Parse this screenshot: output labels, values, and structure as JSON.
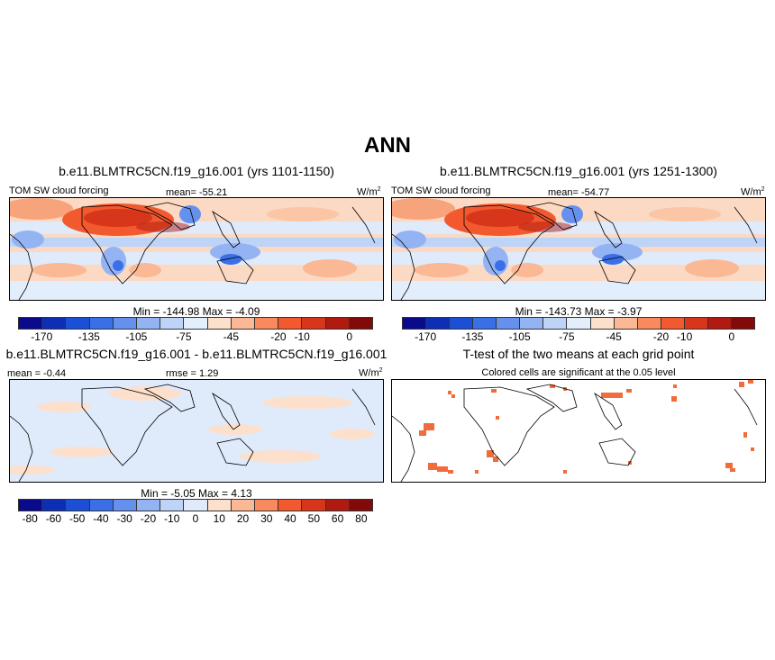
{
  "title": "ANN",
  "units_label": "W/m",
  "units_exp": "2",
  "panels": {
    "p1": {
      "title": "b.e11.BLMTRC5CN.f19_g16.001 (yrs 1101-1150)",
      "variable": "TOM SW cloud forcing",
      "mean": "mean= -55.21",
      "minmax": "Min = -144.98 Max = -4.09"
    },
    "p2": {
      "title": "b.e11.BLMTRC5CN.f19_g16.001 (yrs 1251-1300)",
      "variable": "TOM SW cloud forcing",
      "mean": "mean= -54.77",
      "minmax": "Min = -143.73 Max = -3.97"
    },
    "p3": {
      "title": "b.e11.BLMTRC5CN.f19_g16.001 - b.e11.BLMTRC5CN.f19_g16.001",
      "mean": "mean =  -0.44",
      "rmse": "rmse =   1.29",
      "minmax": "Min =  -5.05 Max =   4.13"
    },
    "p4": {
      "title": "T-test of the two means at each grid point",
      "subtitle": "Colored cells are significant at the 0.05 level"
    }
  },
  "chart_data": [
    {
      "type": "heatmap",
      "title": "b.e11.BLMTRC5CN.f19_g16.001 (yrs 1101-1150)",
      "variable": "TOM SW cloud forcing",
      "units": "W/m2",
      "mean": -55.21,
      "min": -144.98,
      "max": -4.09,
      "colorbar_levels": [
        -170,
        -155,
        -135,
        -120,
        -105,
        -90,
        -75,
        -60,
        -45,
        -30,
        -20,
        -15,
        -10,
        -5,
        0
      ],
      "colorbar_labels": [
        "-170",
        "-135",
        "-105",
        "-75",
        "-45",
        "-20",
        "-10",
        "0"
      ]
    },
    {
      "type": "heatmap",
      "title": "b.e11.BLMTRC5CN.f19_g16.001 (yrs 1251-1300)",
      "variable": "TOM SW cloud forcing",
      "units": "W/m2",
      "mean": -54.77,
      "min": -143.73,
      "max": -3.97,
      "colorbar_levels": [
        -170,
        -155,
        -135,
        -120,
        -105,
        -90,
        -75,
        -60,
        -45,
        -30,
        -20,
        -15,
        -10,
        -5,
        0
      ],
      "colorbar_labels": [
        "-170",
        "-135",
        "-105",
        "-75",
        "-45",
        "-20",
        "-10",
        "0"
      ]
    },
    {
      "type": "heatmap",
      "title": "b.e11.BLMTRC5CN.f19_g16.001 - b.e11.BLMTRC5CN.f19_g16.001",
      "units": "W/m2",
      "mean": -0.44,
      "rmse": 1.29,
      "min": -5.05,
      "max": 4.13,
      "colorbar_levels": [
        -80,
        -60,
        -50,
        -40,
        -30,
        -20,
        -10,
        0,
        10,
        20,
        30,
        40,
        50,
        60,
        80
      ],
      "colorbar_labels": [
        "-80",
        "-60",
        "-50",
        "-40",
        "-30",
        "-20",
        "-10",
        "0",
        "10",
        "20",
        "30",
        "40",
        "50",
        "60",
        "80"
      ]
    },
    {
      "type": "heatmap",
      "title": "T-test of the two means at each grid point",
      "subtitle": "Colored cells are significant at the 0.05 level",
      "significance_level": 0.05
    }
  ],
  "colors": {
    "cbar_main": [
      "#0a0a8c",
      "#0d2fb5",
      "#1a4fd6",
      "#3b6fe8",
      "#6690ee",
      "#93b3f2",
      "#bdd3f7",
      "#e3eefc",
      "#fde0cc",
      "#fbb894",
      "#f88a5d",
      "#f2592f",
      "#d8361a",
      "#b01a10",
      "#820a08"
    ],
    "cbar_diff": [
      "#0a0a8c",
      "#0d2fb5",
      "#1a4fd6",
      "#3b6fe8",
      "#6690ee",
      "#93b3f2",
      "#bdd3f7",
      "#dfeafb",
      "#fde0cc",
      "#fbb894",
      "#f88a5d",
      "#f2592f",
      "#d8361a",
      "#b01a10",
      "#820a08"
    ],
    "sig_cell": "#f26b3a"
  }
}
